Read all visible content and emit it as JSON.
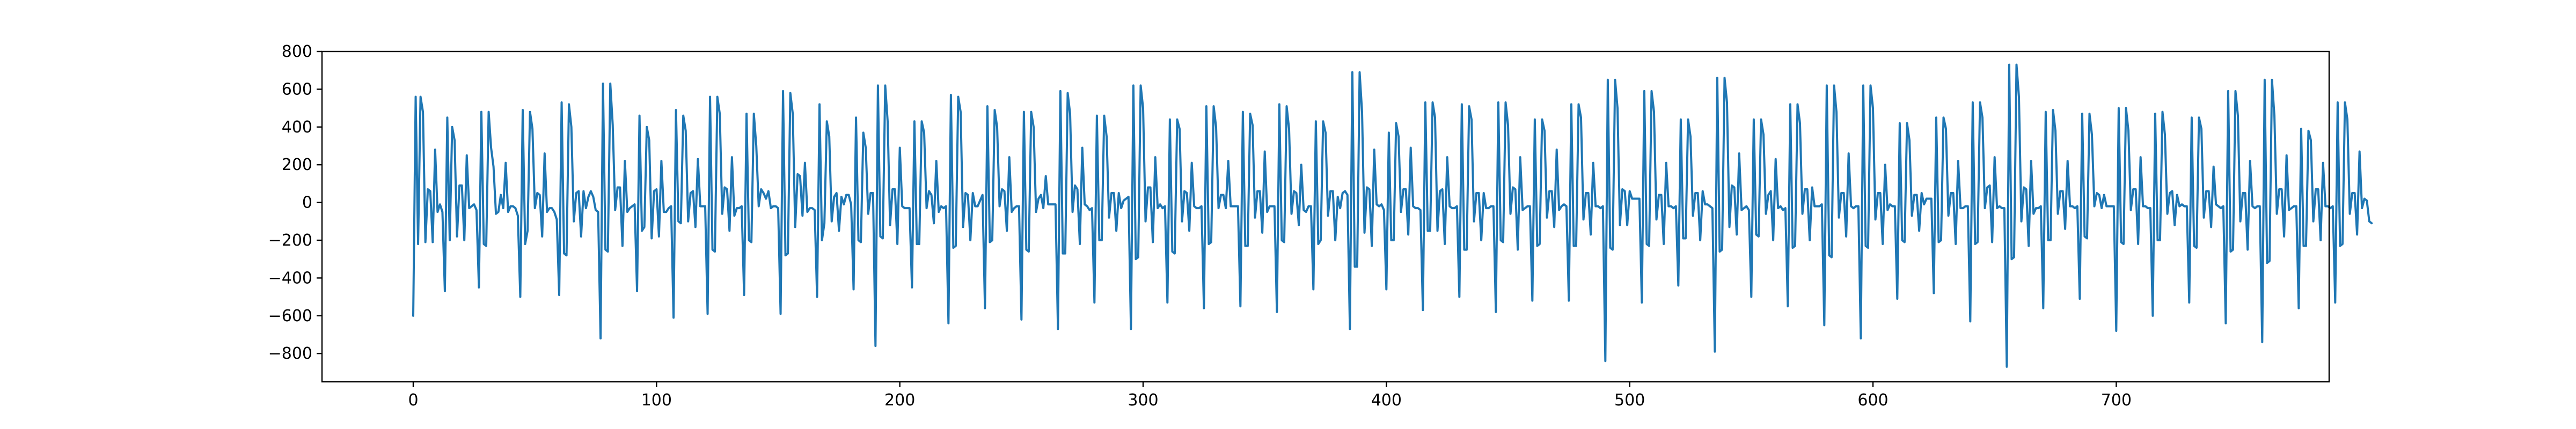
{
  "chart_data": {
    "type": "line",
    "title": "",
    "xlabel": "",
    "ylabel": "",
    "xlim": [
      -37.5,
      787.5
    ],
    "ylim": [
      -950,
      800
    ],
    "grid": false,
    "x_ticks": [
      0,
      100,
      200,
      300,
      400,
      500,
      600,
      700
    ],
    "y_ticks": [
      -800,
      -600,
      -400,
      -200,
      0,
      200,
      400,
      600,
      800
    ],
    "x_tick_labels": [
      "0",
      "100",
      "200",
      "300",
      "400",
      "500",
      "600",
      "700"
    ],
    "y_tick_labels": [
      "−800",
      "−600",
      "−400",
      "−200",
      "0",
      "200",
      "400",
      "600",
      "800"
    ],
    "series": [
      {
        "color": "#1f77b4",
        "x_start": 0,
        "x_step": 1,
        "y": [
          -600,
          560,
          -220,
          560,
          480,
          -210,
          70,
          60,
          -210,
          280,
          -50,
          -10,
          -50,
          -470,
          450,
          -200,
          400,
          330,
          -180,
          90,
          90,
          -200,
          250,
          -30,
          -20,
          -10,
          -40,
          -450,
          480,
          -220,
          -230,
          480,
          290,
          190,
          -60,
          -50,
          40,
          -30,
          210,
          -50,
          -20,
          -20,
          -30,
          -70,
          -500,
          490,
          -220,
          -150,
          480,
          390,
          -30,
          50,
          40,
          -180,
          260,
          -50,
          -30,
          -30,
          -50,
          -90,
          -490,
          530,
          -270,
          -280,
          520,
          400,
          -100,
          50,
          60,
          -180,
          60,
          -30,
          30,
          60,
          30,
          -40,
          -50,
          -720,
          630,
          -250,
          -260,
          630,
          410,
          -40,
          80,
          80,
          -230,
          220,
          -50,
          -30,
          -20,
          -10,
          -470,
          460,
          -150,
          -130,
          400,
          330,
          -190,
          60,
          70,
          -180,
          220,
          -50,
          -50,
          -30,
          -20,
          -610,
          490,
          -100,
          -110,
          460,
          380,
          -100,
          50,
          60,
          -130,
          230,
          -20,
          -20,
          -20,
          -590,
          560,
          -250,
          -260,
          560,
          470,
          -60,
          80,
          70,
          -150,
          240,
          -70,
          -30,
          -30,
          -20,
          -490,
          470,
          -200,
          -210,
          470,
          300,
          -20,
          70,
          50,
          20,
          60,
          -30,
          -20,
          -20,
          -30,
          -590,
          590,
          -280,
          -270,
          580,
          470,
          -130,
          150,
          140,
          -70,
          210,
          -50,
          -30,
          -30,
          -40,
          -500,
          520,
          -200,
          -110,
          430,
          350,
          -100,
          30,
          50,
          -150,
          30,
          -10,
          40,
          40,
          -10,
          -460,
          450,
          -200,
          -210,
          370,
          290,
          -60,
          50,
          50,
          -760,
          620,
          -180,
          -190,
          620,
          430,
          -120,
          70,
          70,
          -220,
          290,
          -20,
          -30,
          -30,
          -30,
          -450,
          430,
          -220,
          -220,
          430,
          370,
          -30,
          60,
          40,
          -110,
          220,
          -50,
          -20,
          -30,
          -20,
          -640,
          570,
          -240,
          -230,
          560,
          480,
          -130,
          50,
          40,
          -200,
          50,
          -20,
          -20,
          10,
          40,
          -560,
          510,
          -210,
          -200,
          490,
          400,
          -20,
          70,
          60,
          -150,
          240,
          -50,
          -30,
          -20,
          -20,
          -620,
          480,
          -250,
          -260,
          480,
          400,
          -50,
          20,
          40,
          -30,
          140,
          -10,
          -10,
          -10,
          -10,
          -670,
          590,
          -270,
          -270,
          580,
          470,
          -50,
          90,
          70,
          -220,
          290,
          -10,
          -20,
          -40,
          -30,
          -530,
          460,
          -200,
          -200,
          460,
          350,
          -80,
          50,
          50,
          -150,
          50,
          -30,
          10,
          20,
          30,
          -670,
          620,
          -300,
          -290,
          620,
          500,
          -100,
          80,
          80,
          -210,
          240,
          -30,
          -10,
          -30,
          -20,
          -530,
          440,
          -260,
          -270,
          440,
          390,
          -100,
          60,
          50,
          -150,
          210,
          -20,
          -30,
          -30,
          -20,
          -560,
          510,
          -220,
          -210,
          510,
          400,
          -30,
          40,
          40,
          -30,
          220,
          -20,
          -20,
          -20,
          -20,
          -550,
          480,
          -230,
          -230,
          470,
          410,
          -80,
          60,
          60,
          -160,
          270,
          -50,
          -20,
          -20,
          -20,
          -580,
          520,
          -200,
          -210,
          510,
          390,
          -60,
          60,
          50,
          -120,
          200,
          -40,
          -50,
          -20,
          -20,
          -460,
          430,
          -220,
          -200,
          430,
          370,
          -70,
          60,
          60,
          -200,
          30,
          -30,
          50,
          60,
          40,
          -670,
          690,
          -340,
          -340,
          690,
          480,
          -160,
          80,
          70,
          -230,
          280,
          -10,
          -20,
          -10,
          -40,
          -460,
          370,
          -200,
          -200,
          420,
          350,
          -50,
          70,
          70,
          -170,
          290,
          -20,
          -30,
          -30,
          -40,
          -570,
          530,
          -150,
          -150,
          530,
          450,
          -150,
          60,
          70,
          -220,
          240,
          -20,
          -30,
          -30,
          -20,
          -500,
          520,
          -250,
          -250,
          510,
          440,
          -100,
          50,
          50,
          -200,
          50,
          -30,
          -30,
          -20,
          -20,
          -580,
          530,
          -200,
          -210,
          530,
          410,
          -60,
          80,
          70,
          -250,
          240,
          -40,
          -30,
          -20,
          -20,
          -520,
          440,
          -230,
          -220,
          440,
          380,
          -80,
          60,
          60,
          -130,
          280,
          -40,
          -20,
          -10,
          -20,
          -520,
          520,
          -230,
          -230,
          520,
          450,
          -90,
          50,
          50,
          -170,
          210,
          -20,
          -20,
          -30,
          -20,
          -840,
          650,
          -240,
          -250,
          650,
          500,
          -120,
          70,
          60,
          -120,
          60,
          20,
          20,
          20,
          20,
          -530,
          590,
          -220,
          -230,
          590,
          480,
          -90,
          40,
          40,
          -220,
          210,
          -20,
          -20,
          -30,
          -20,
          -440,
          440,
          -190,
          -190,
          440,
          350,
          -70,
          50,
          50,
          -200,
          60,
          -10,
          -10,
          -20,
          -30,
          -790,
          660,
          -260,
          -250,
          660,
          530,
          -130,
          90,
          80,
          -170,
          260,
          -40,
          -30,
          -20,
          -40,
          -500,
          440,
          -170,
          -180,
          440,
          360,
          -60,
          40,
          60,
          -200,
          230,
          -30,
          -20,
          -40,
          -30,
          -550,
          520,
          -240,
          -230,
          520,
          420,
          -60,
          70,
          70,
          -200,
          80,
          -20,
          -20,
          -20,
          -10,
          -650,
          620,
          -280,
          -290,
          620,
          480,
          -80,
          50,
          50,
          -180,
          260,
          -20,
          -30,
          -20,
          -20,
          -720,
          620,
          -230,
          -240,
          620,
          500,
          -90,
          50,
          50,
          -220,
          200,
          -40,
          -10,
          -20,
          -20,
          -510,
          420,
          -200,
          -210,
          420,
          330,
          -70,
          40,
          40,
          -150,
          50,
          -10,
          20,
          20,
          20,
          -480,
          450,
          -210,
          -200,
          450,
          390,
          -70,
          50,
          50,
          -220,
          220,
          -30,
          -30,
          -20,
          -20,
          -630,
          530,
          -220,
          -210,
          530,
          450,
          -30,
          80,
          90,
          -210,
          240,
          -30,
          -20,
          -30,
          -30,
          -870,
          730,
          -300,
          -290,
          730,
          560,
          -100,
          80,
          70,
          -230,
          220,
          -60,
          -30,
          -30,
          -20,
          -560,
          480,
          -200,
          -200,
          490,
          380,
          -60,
          60,
          60,
          -140,
          220,
          -20,
          -20,
          -30,
          -20,
          -510,
          470,
          -180,
          -190,
          470,
          360,
          -20,
          50,
          40,
          -30,
          40,
          -20,
          -20,
          -20,
          -20,
          -680,
          500,
          -210,
          -220,
          500,
          380,
          -40,
          70,
          70,
          -220,
          240,
          -20,
          -20,
          -30,
          -30,
          -600,
          470,
          -200,
          -200,
          480,
          360,
          -60,
          50,
          60,
          -120,
          40,
          -20,
          -10,
          -20,
          -20,
          -530,
          450,
          -230,
          -240,
          450,
          390,
          -80,
          60,
          60,
          -130,
          190,
          -10,
          -20,
          -30,
          -20,
          -640,
          590,
          -260,
          -250,
          590,
          460,
          -100,
          50,
          50,
          -250,
          220,
          -20,
          -30,
          -20,
          -20,
          -740,
          650,
          -320,
          -310,
          650,
          460,
          -60,
          70,
          70,
          -180,
          250,
          -40,
          -30,
          -20,
          -20,
          -560,
          390,
          -230,
          -230,
          380,
          330,
          -100,
          70,
          70,
          -200,
          210,
          -20,
          -20,
          -30,
          -20,
          -530,
          530,
          -230,
          -220,
          530,
          440,
          -60,
          50,
          50,
          -170,
          270,
          -30,
          20,
          10,
          -100,
          -110
        ]
      }
    ]
  }
}
